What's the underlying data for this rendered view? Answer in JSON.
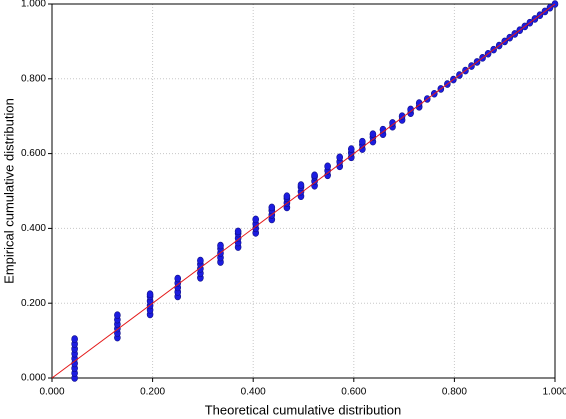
{
  "chart_data": {
    "type": "scatter",
    "x_label": "Theoretical cumulative distribution",
    "y_label": "Empirical cumulative distribution",
    "xlim": [
      0,
      1
    ],
    "ylim": [
      0,
      1
    ],
    "xticks": [
      {
        "value": 0,
        "label": "0.000"
      },
      {
        "value": 0.2,
        "label": "0.200"
      },
      {
        "value": 0.4,
        "label": "0.400"
      },
      {
        "value": 0.6,
        "label": "0.600"
      },
      {
        "value": 0.8,
        "label": "0.800"
      },
      {
        "value": 1,
        "label": "1.000"
      }
    ],
    "yticks": [
      {
        "value": 0,
        "label": "0.000"
      },
      {
        "value": 0.2,
        "label": "0.200"
      },
      {
        "value": 0.4,
        "label": "0.400"
      },
      {
        "value": 0.6,
        "label": "0.600"
      },
      {
        "value": 0.8,
        "label": "0.800"
      },
      {
        "value": 1,
        "label": "1.000"
      }
    ],
    "grid": true,
    "color": "#1c1ce0",
    "x": [
      0.045,
      0.045,
      0.045,
      0.045,
      0.045,
      0.045,
      0.045,
      0.045,
      0.045,
      0.13,
      0.13,
      0.13,
      0.13,
      0.13,
      0.13,
      0.195,
      0.195,
      0.195,
      0.195,
      0.195,
      0.195,
      0.25,
      0.25,
      0.25,
      0.25,
      0.25,
      0.295,
      0.295,
      0.295,
      0.295,
      0.295,
      0.335,
      0.335,
      0.335,
      0.335,
      0.335,
      0.37,
      0.37,
      0.37,
      0.37,
      0.37,
      0.405,
      0.405,
      0.405,
      0.405,
      0.437,
      0.437,
      0.437,
      0.437,
      0.467,
      0.467,
      0.467,
      0.467,
      0.495,
      0.495,
      0.495,
      0.495,
      0.522,
      0.522,
      0.522,
      0.522,
      0.548,
      0.548,
      0.548,
      0.572,
      0.572,
      0.572,
      0.595,
      0.595,
      0.595,
      0.617,
      0.617,
      0.617,
      0.638,
      0.638,
      0.638,
      0.658,
      0.658,
      0.677,
      0.677,
      0.696,
      0.696,
      0.713,
      0.713,
      0.73,
      0.73,
      0.746,
      0.76,
      0.773,
      0.786,
      0.798,
      0.81,
      0.822,
      0.834,
      0.845,
      0.856,
      0.867,
      0.878,
      0.889,
      0.9,
      0.91,
      0.92,
      0.93,
      0.94,
      0.95,
      0.96,
      0.97,
      0.98,
      0.99,
      1
    ],
    "y": [
      0,
      0.013,
      0.026,
      0.039,
      0.052,
      0.065,
      0.078,
      0.091,
      0.104,
      0.108,
      0.12,
      0.132,
      0.144,
      0.156,
      0.168,
      0.17,
      0.182,
      0.194,
      0.206,
      0.218,
      0.224,
      0.218,
      0.23,
      0.242,
      0.254,
      0.266,
      0.268,
      0.28,
      0.292,
      0.304,
      0.314,
      0.31,
      0.322,
      0.334,
      0.346,
      0.354,
      0.35,
      0.362,
      0.374,
      0.386,
      0.392,
      0.388,
      0.4,
      0.412,
      0.424,
      0.424,
      0.436,
      0.448,
      0.456,
      0.456,
      0.468,
      0.48,
      0.486,
      0.486,
      0.498,
      0.51,
      0.516,
      0.514,
      0.526,
      0.538,
      0.542,
      0.542,
      0.554,
      0.566,
      0.566,
      0.578,
      0.59,
      0.59,
      0.602,
      0.612,
      0.612,
      0.624,
      0.632,
      0.632,
      0.644,
      0.652,
      0.652,
      0.664,
      0.672,
      0.682,
      0.69,
      0.7,
      0.708,
      0.718,
      0.725,
      0.735,
      0.746,
      0.76,
      0.773,
      0.786,
      0.798,
      0.81,
      0.822,
      0.834,
      0.845,
      0.856,
      0.867,
      0.878,
      0.889,
      0.9,
      0.91,
      0.92,
      0.93,
      0.94,
      0.95,
      0.96,
      0.97,
      0.98,
      0.99,
      1
    ],
    "reference_line": {
      "x": [
        0,
        1
      ],
      "y": [
        0,
        1
      ],
      "color": "#e41a1a"
    }
  }
}
